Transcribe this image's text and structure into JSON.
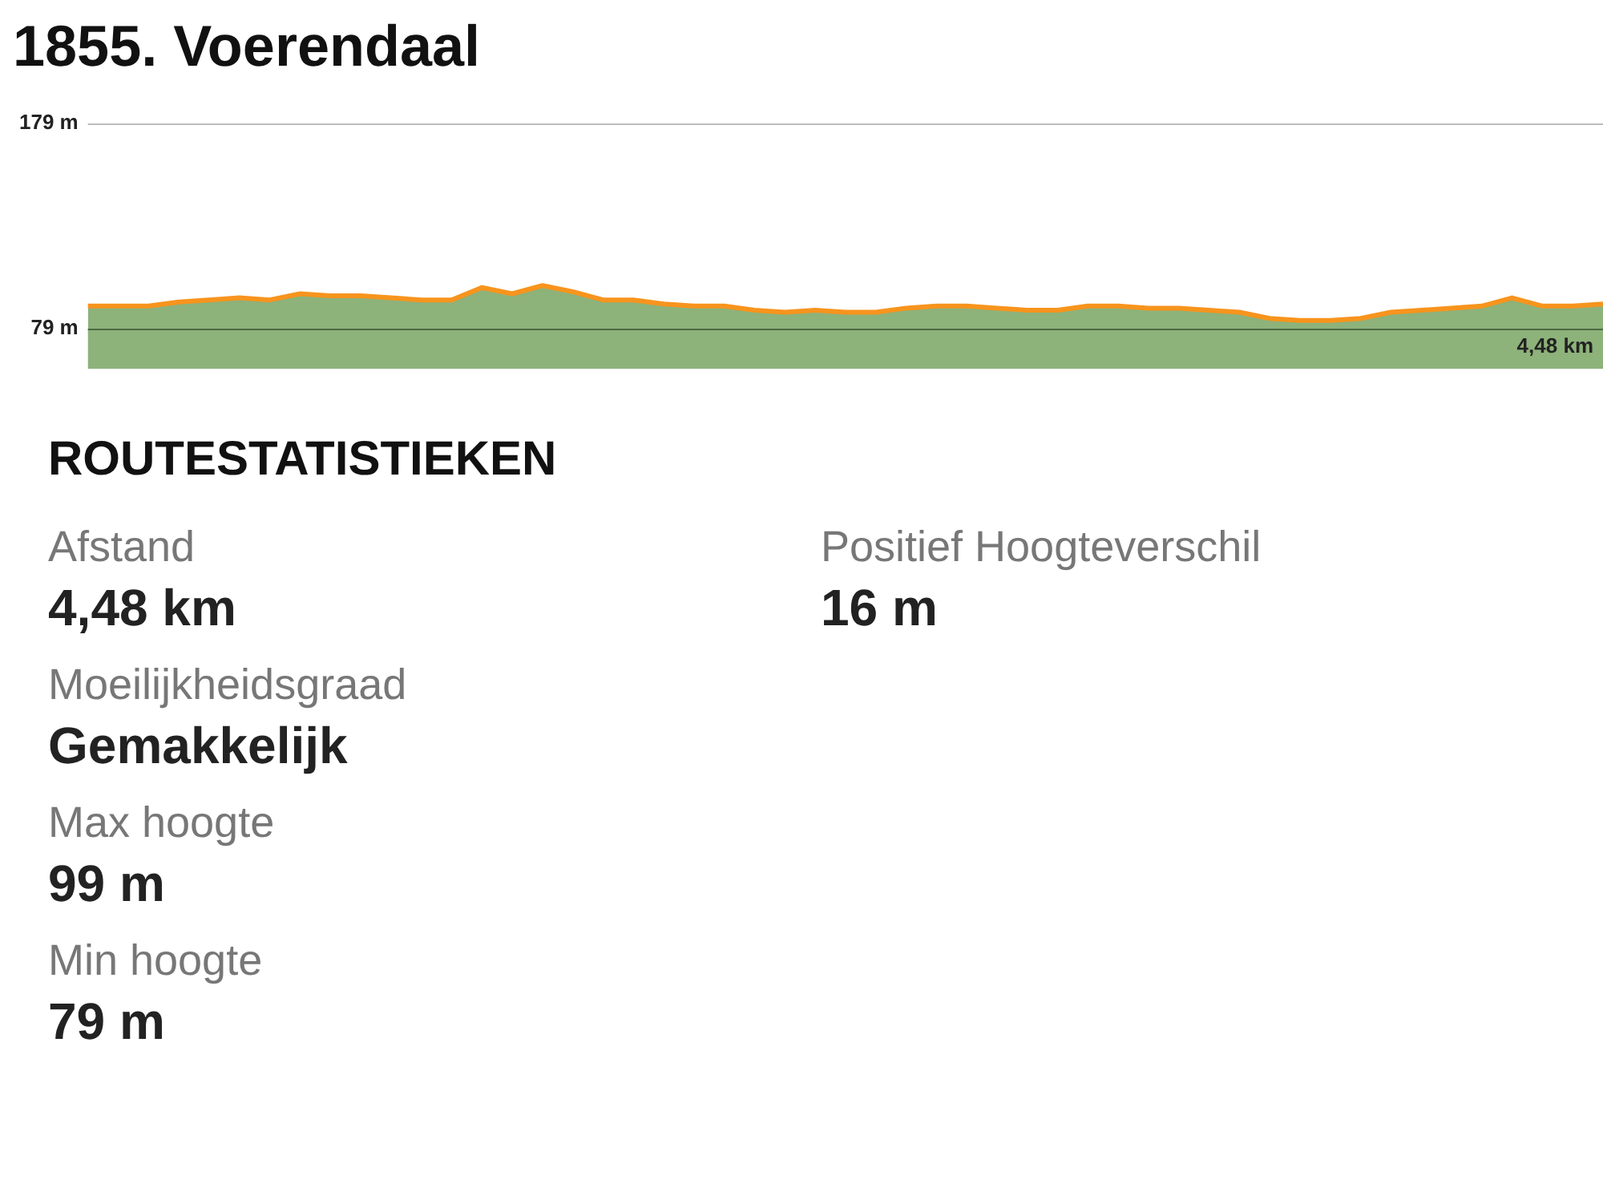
{
  "chart_data": [
    {
      "type": "area",
      "title": "1855. Voerendaal",
      "categories": [
        null,
        null,
        null,
        null,
        null,
        null,
        null,
        null,
        null,
        null,
        null,
        null,
        null,
        null,
        null,
        null,
        null,
        null,
        null,
        null,
        null,
        null,
        null,
        null,
        null,
        null,
        null,
        null,
        null,
        null,
        null,
        null,
        null,
        null,
        null,
        null,
        null,
        null,
        null,
        null,
        null,
        null,
        null,
        null,
        null,
        null,
        null,
        null,
        null,
        null,
        null
      ],
      "series": [
        {
          "type": "area",
          "color": "#8db27a",
          "values": [
            90,
            90,
            90,
            92,
            93,
            94,
            93,
            96,
            95,
            95,
            94,
            93,
            93,
            99,
            96,
            100,
            97,
            93,
            93,
            91,
            90,
            90,
            88,
            87,
            88,
            87,
            87,
            89,
            90,
            90,
            89,
            88,
            88,
            90,
            90,
            89,
            89,
            88,
            87,
            84,
            83,
            83,
            84,
            87,
            88,
            89,
            90,
            94,
            90,
            90,
            91
          ]
        }
      ],
      "annotations": [
        "4,48 km"
      ],
      "ylim": [
        79,
        179
      ],
      "yticks": [
        {
          "value": 79,
          "label": "79 m"
        },
        {
          "value": 179,
          "label": "179 m"
        }
      ],
      "grid": "y",
      "legend": false,
      "marker": "none"
    },
    {
      "type": "other",
      "title": "ROUTESTATISTIEKEN",
      "annotations": [
        "Afstand",
        "4,48 km",
        "Positief Hoogteverschil",
        "16 m",
        "Moeilijkheidsgraad",
        "Gemakkelijk",
        "Max hoogte",
        "99 m",
        "Min hoogte",
        "79 m"
      ]
    }
  ]
}
